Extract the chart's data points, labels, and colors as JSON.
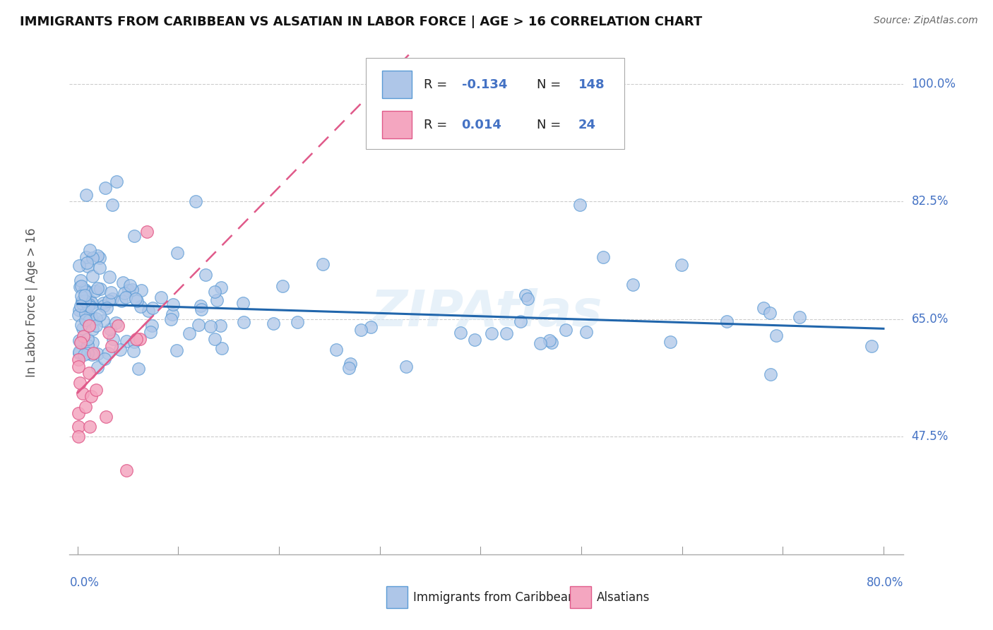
{
  "title": "IMMIGRANTS FROM CARIBBEAN VS ALSATIAN IN LABOR FORCE | AGE > 16 CORRELATION CHART",
  "source": "Source: ZipAtlas.com",
  "ylabel": "In Labor Force | Age > 16",
  "xmin": 0.0,
  "xmax": 0.8,
  "ymin": 0.3,
  "ymax": 1.05,
  "ytick_vals": [
    0.475,
    0.65,
    0.825,
    1.0
  ],
  "ytick_labels": [
    "47.5%",
    "65.0%",
    "82.5%",
    "100.0%"
  ],
  "blue_fill": "#aec6e8",
  "blue_edge": "#5b9bd5",
  "pink_fill": "#f4a6c0",
  "pink_edge": "#e05a8a",
  "blue_line_color": "#2166ac",
  "pink_line_color": "#e05a8a",
  "axis_label_color": "#4472c4",
  "title_color": "#111111",
  "source_color": "#666666",
  "grid_color": "#cccccc",
  "watermark_color": "#d8e8f5",
  "watermark_text": "ZIPAtlas"
}
